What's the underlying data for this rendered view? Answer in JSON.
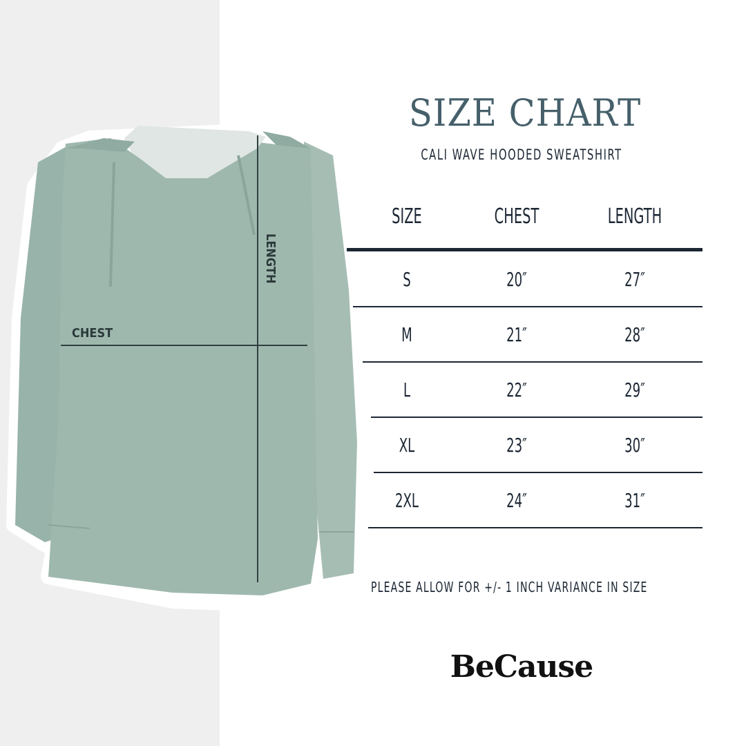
{
  "title": "SIZE CHART",
  "subtitle": "CALI WAVE HOODED SWEATSHIRT",
  "table": {
    "headers": [
      "SIZE",
      "CHEST",
      "LENGTH"
    ],
    "rows": [
      [
        "S",
        "20″",
        "27″"
      ],
      [
        "M",
        "21″",
        "28″"
      ],
      [
        "L",
        "22″",
        "29″"
      ],
      [
        "XL",
        "23″",
        "30″"
      ],
      [
        "2XL",
        "24″",
        "31″"
      ]
    ]
  },
  "diagram": {
    "chest_label": "CHEST",
    "length_label": "LENGTH",
    "garment_color": "#9fb8ae"
  },
  "note": "PLEASE ALLOW FOR +/- 1 INCH VARIANCE IN SIZE",
  "brand": "BeCause",
  "colors": {
    "title": "#46606b",
    "text": "#1b2633",
    "left_band": "#efefef"
  }
}
